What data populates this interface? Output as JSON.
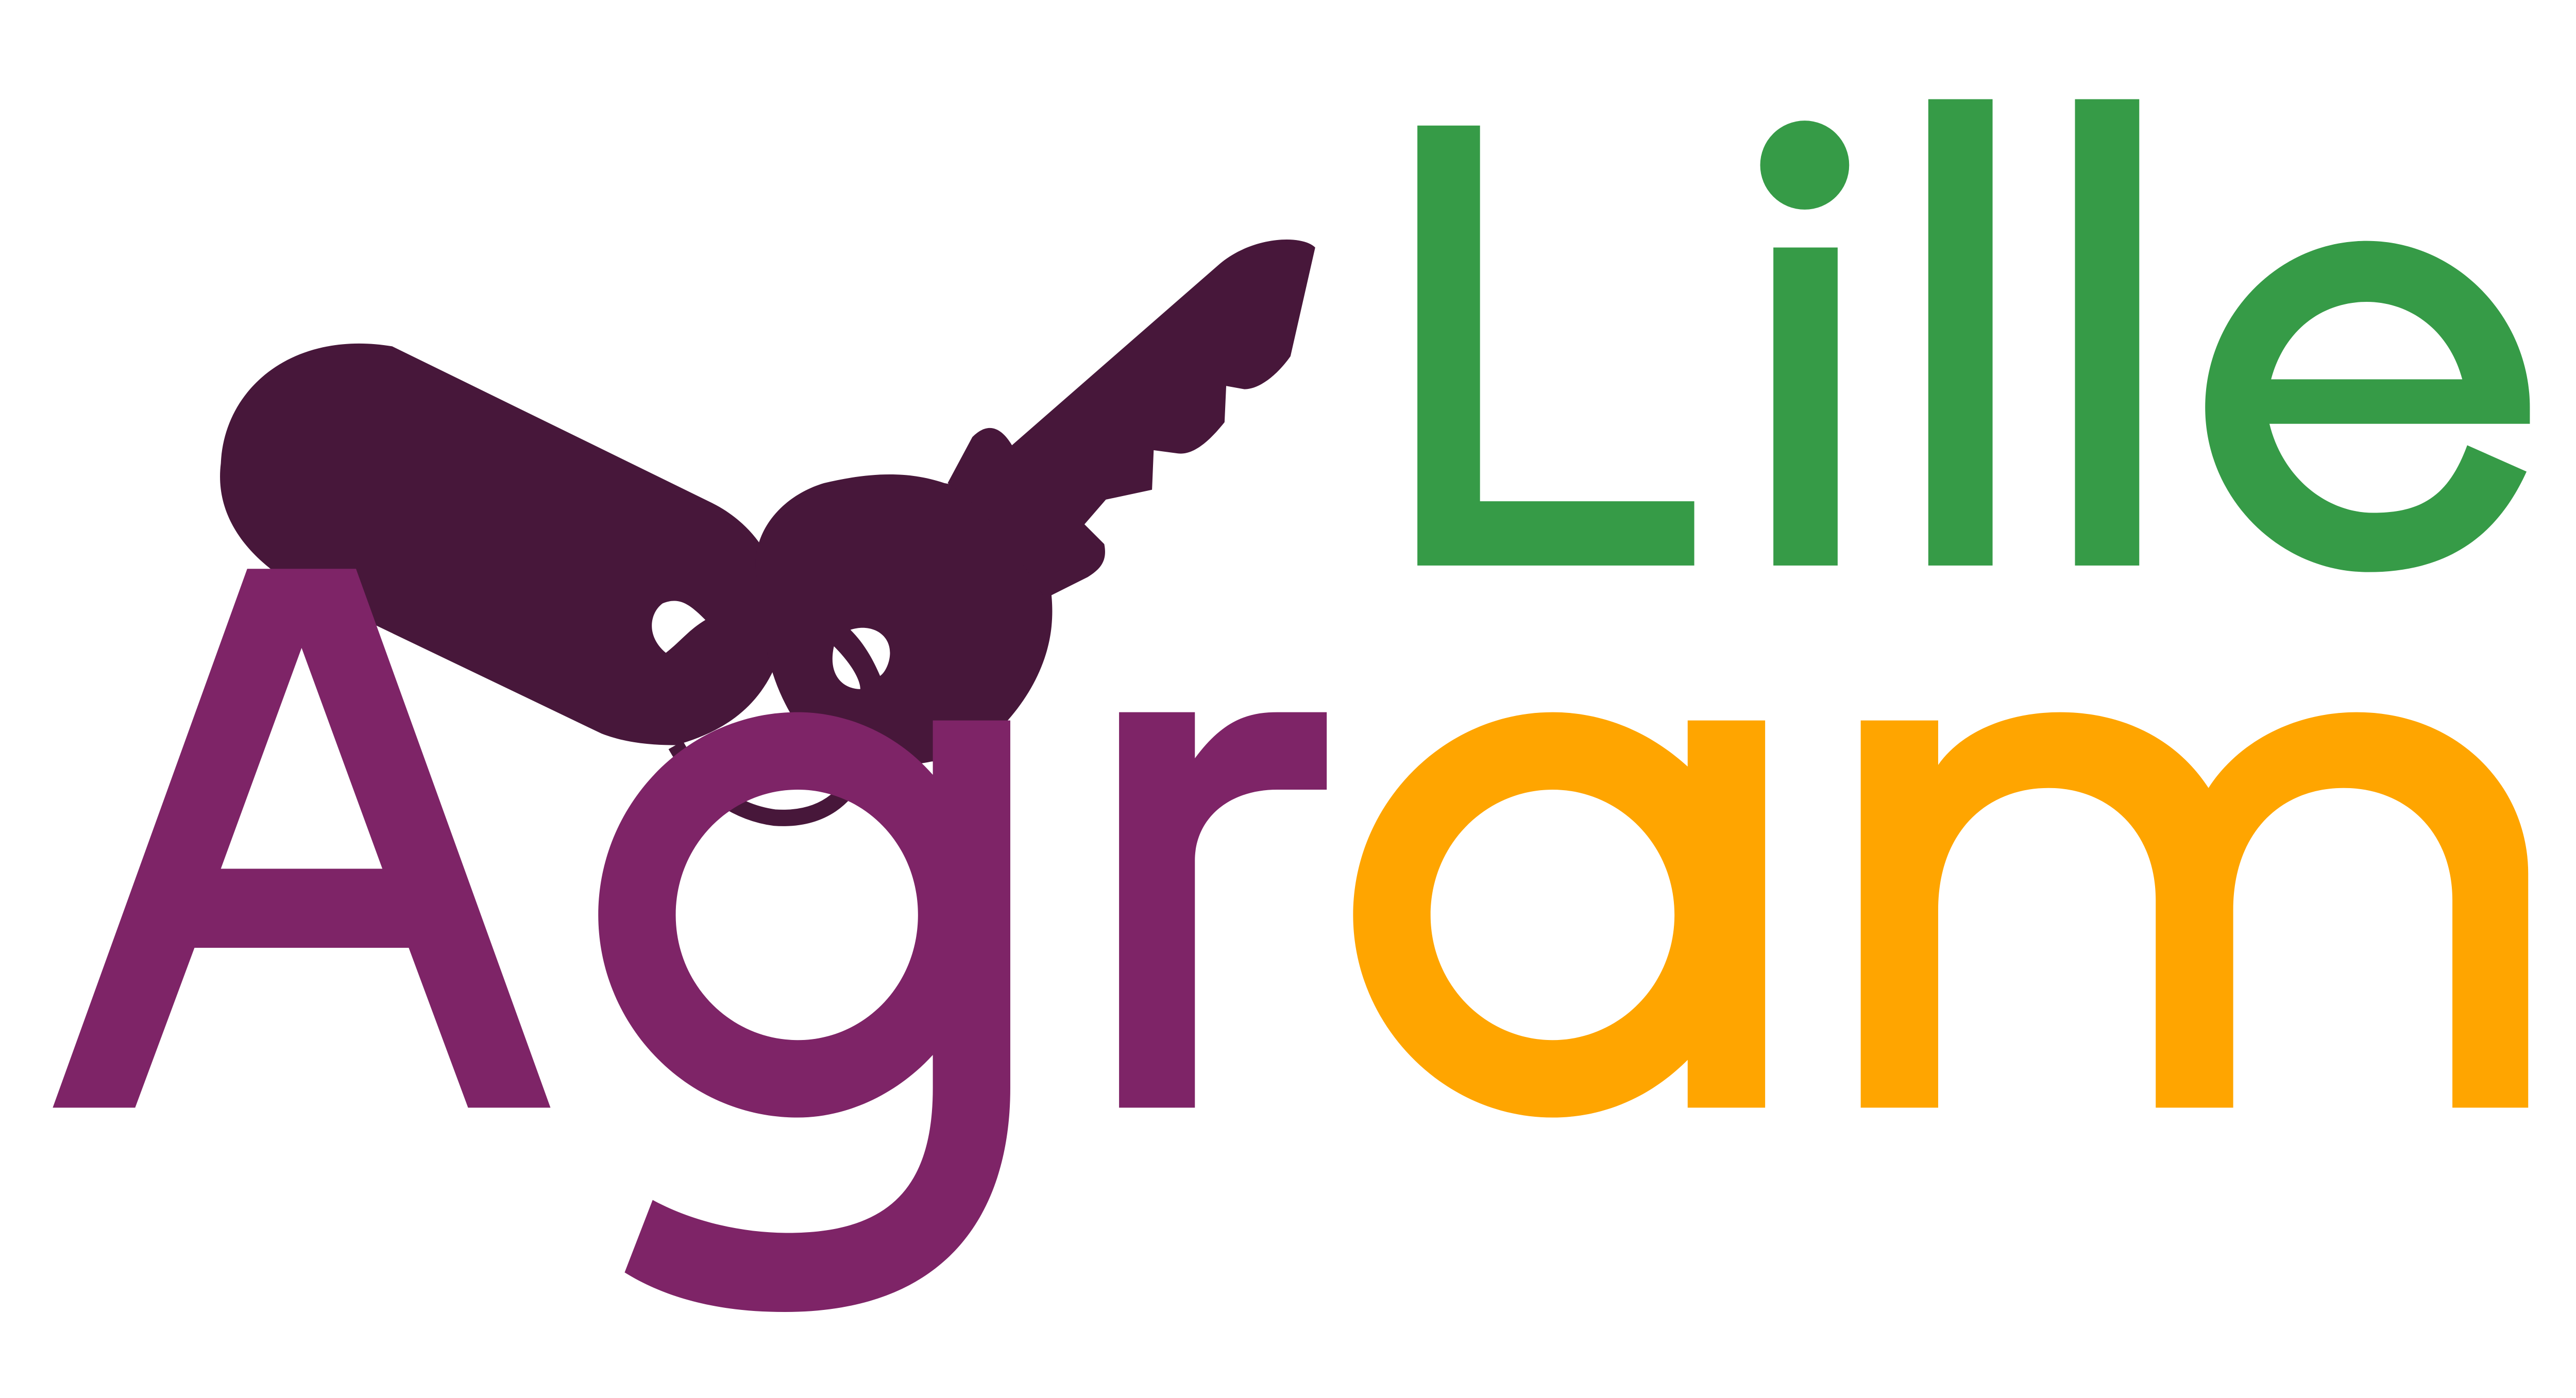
{
  "logo": {
    "line1": "Lille",
    "line2_part_purple": "Agr",
    "line2_part_orange": "am",
    "emblem": "key-fob-icon",
    "colors": {
      "green": "#369b47",
      "purple": "#7e2467",
      "orange": "#ffa500",
      "dark_plum": "#47173a",
      "background": "#ffffff"
    }
  }
}
